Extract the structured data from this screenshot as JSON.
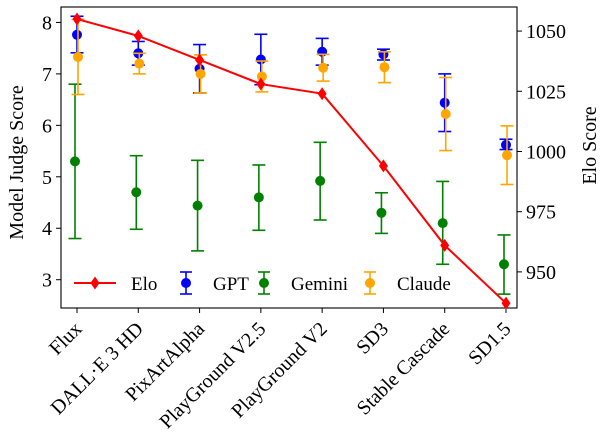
{
  "chart_data": {
    "type": "scatter",
    "categories": [
      "Flux",
      "DALL·E 3 HD",
      "PixArtAlpha",
      "PlayGround V2.5",
      "PlayGround V2",
      "SD3",
      "Stable Cascade",
      "SD1.5"
    ],
    "ylabel_left": "Model Judge Score",
    "ylabel_right": "Elo Score",
    "ylim_left": [
      2.45,
      8.3
    ],
    "ylim_right": [
      935,
      1060
    ],
    "yticks_left": [
      3,
      4,
      5,
      6,
      7,
      8
    ],
    "yticks_right": [
      950,
      975,
      1000,
      1025,
      1050
    ],
    "grid": false,
    "legend_position": "bottom-left",
    "series": [
      {
        "name": "Elo",
        "axis": "right",
        "kind": "line",
        "color": "#ff0000",
        "marker": "diamond",
        "values": [
          1055,
          1048,
          1038,
          1028,
          1024,
          994,
          961,
          937
        ]
      },
      {
        "name": "GPT",
        "axis": "left",
        "kind": "errorbar",
        "color": "#0000ff",
        "values": [
          7.76,
          7.4,
          7.1,
          7.28,
          7.43,
          7.38,
          6.44,
          5.62
        ],
        "lower": [
          7.41,
          7.17,
          6.63,
          6.79,
          7.17,
          7.27,
          5.88,
          5.53
        ],
        "upper": [
          8.12,
          7.63,
          7.57,
          7.77,
          7.69,
          7.48,
          7.0,
          5.73
        ]
      },
      {
        "name": "Gemini",
        "axis": "left",
        "kind": "errorbar",
        "color": "#008000",
        "values": [
          5.3,
          4.7,
          4.44,
          4.6,
          4.92,
          4.3,
          4.1,
          3.3
        ],
        "lower": [
          3.8,
          3.98,
          3.56,
          3.96,
          4.16,
          3.9,
          3.3,
          2.72
        ],
        "upper": [
          6.8,
          5.41,
          5.32,
          5.23,
          5.67,
          4.69,
          4.91,
          3.87
        ]
      },
      {
        "name": "Claude",
        "axis": "left",
        "kind": "errorbar",
        "color": "#ffa500",
        "values": [
          7.33,
          7.2,
          7.0,
          6.95,
          7.12,
          7.13,
          6.22,
          5.42
        ],
        "lower": [
          6.6,
          7.0,
          6.63,
          6.65,
          6.86,
          6.83,
          5.51,
          4.85
        ],
        "upper": [
          8.06,
          7.4,
          7.37,
          7.25,
          7.38,
          7.43,
          6.93,
          5.99
        ]
      }
    ]
  }
}
